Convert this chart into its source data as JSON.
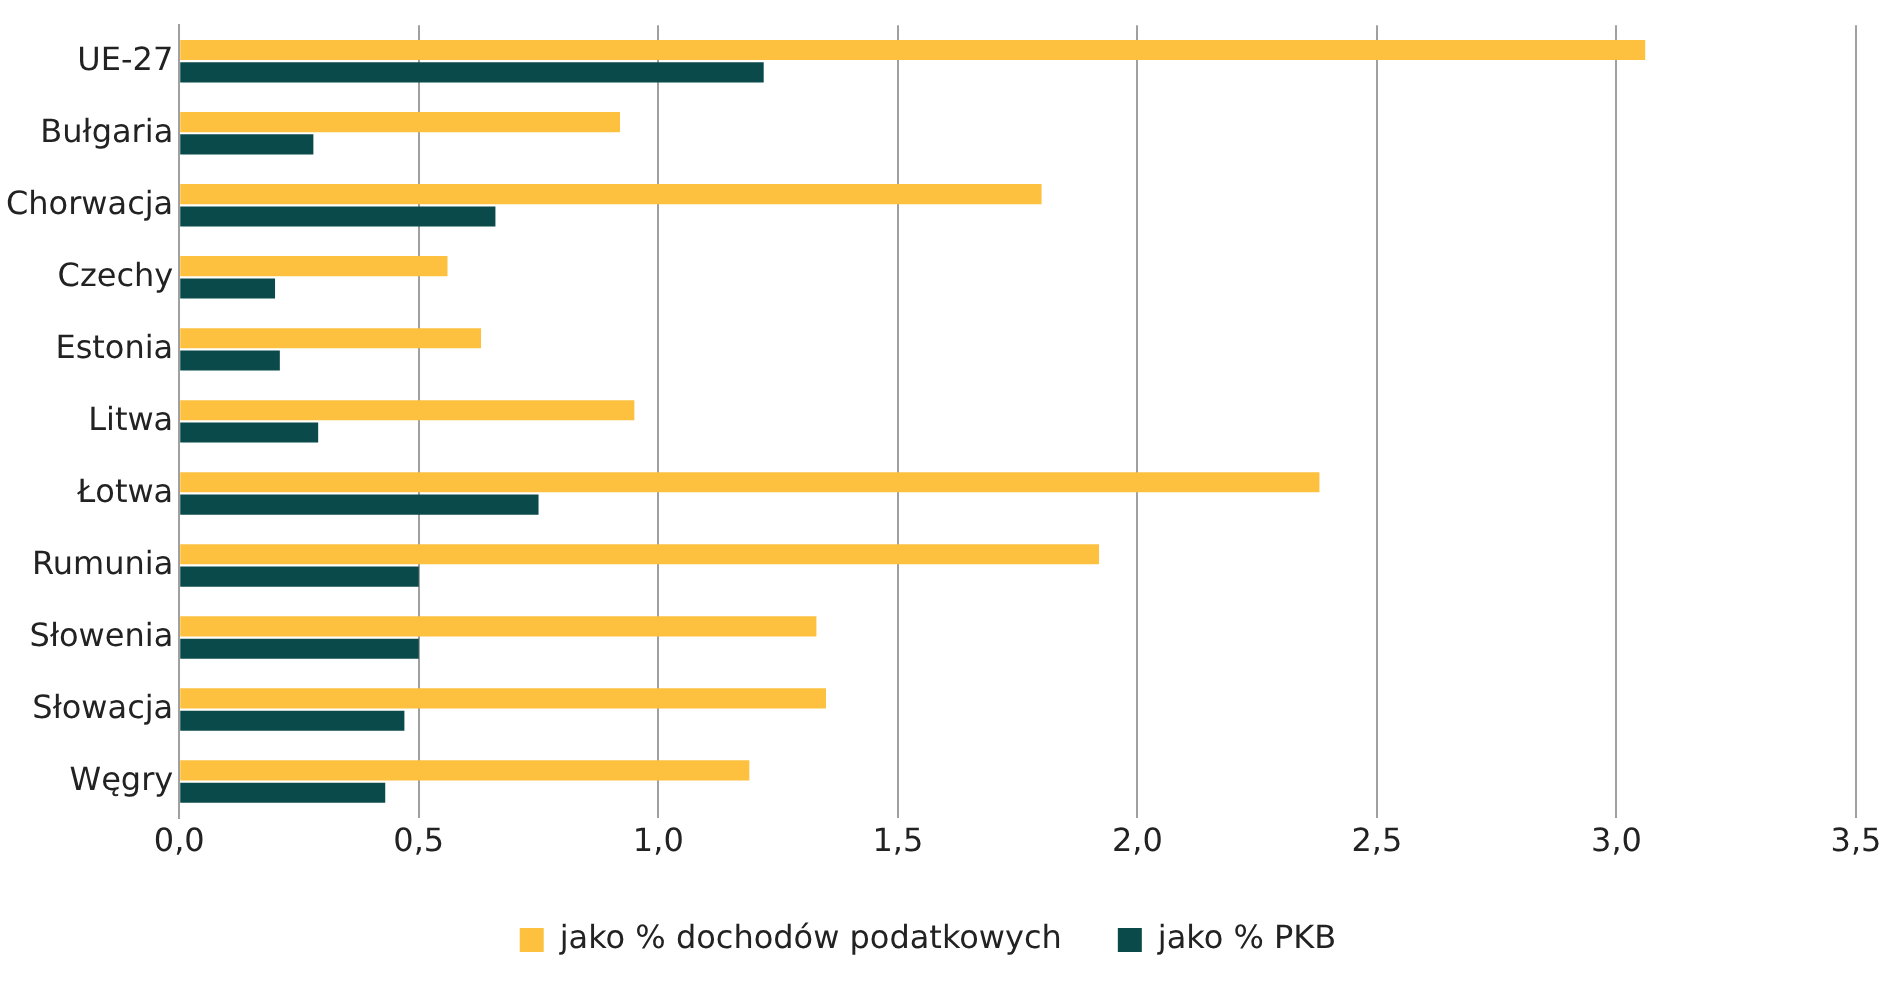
{
  "chart_data": {
    "type": "bar",
    "orientation": "horizontal",
    "categories": [
      "UE-27",
      "Bułgaria",
      "Chorwacja",
      "Czechy",
      "Estonia",
      "Litwa",
      "Łotwa",
      "Rumunia",
      "Słowenia",
      "Słowacja",
      "Węgry"
    ],
    "series": [
      {
        "name": "jako % dochodów podatkowych",
        "color": "#fdc13f",
        "values": [
          3.06,
          0.92,
          1.8,
          0.56,
          0.63,
          0.95,
          2.38,
          1.92,
          1.33,
          1.35,
          1.19
        ]
      },
      {
        "name": "jako % PKB",
        "color": "#0b4a4a",
        "values": [
          1.22,
          0.28,
          0.66,
          0.2,
          0.21,
          0.29,
          0.75,
          0.5,
          0.5,
          0.47,
          0.43
        ]
      }
    ],
    "xlim": [
      0,
      3.5
    ],
    "xticks": [
      {
        "value": 0,
        "label": "0,0"
      },
      {
        "value": 0.5,
        "label": "0,5"
      },
      {
        "value": 1,
        "label": "1,0"
      },
      {
        "value": 1.5,
        "label": "1,5"
      },
      {
        "value": 2,
        "label": "2,0"
      },
      {
        "value": 2.5,
        "label": "2,5"
      },
      {
        "value": 3,
        "label": "3,0"
      },
      {
        "value": 3.5,
        "label": "3,5"
      }
    ],
    "grid": "x",
    "legend": "bottom"
  }
}
